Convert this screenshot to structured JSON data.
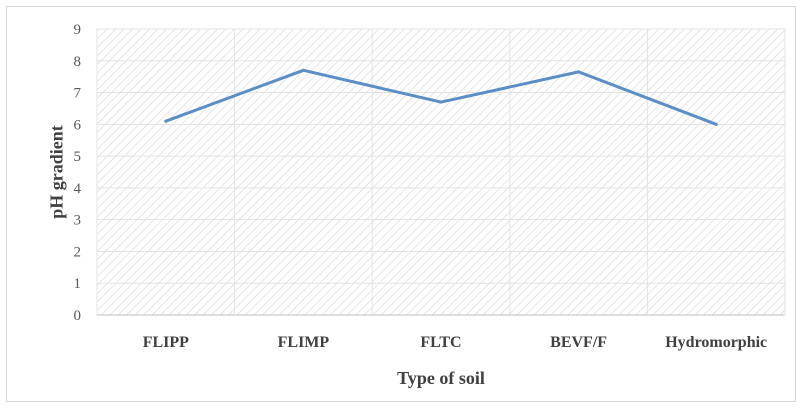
{
  "chart_data": {
    "type": "line",
    "xlabel": "Type of soil",
    "ylabel": "pH  gradient",
    "categories": [
      "FLIPP",
      "FLIMP",
      "FLTC",
      "BEVF/F",
      "Hydromorphic"
    ],
    "series": [
      {
        "values": [
          6.1,
          7.7,
          6.7,
          7.65,
          6.0
        ],
        "color": "#5b8ec7"
      }
    ],
    "ylim": [
      0,
      9
    ],
    "yticks": [
      "0",
      "1",
      "2",
      "3",
      "4",
      "5",
      "6",
      "7",
      "8",
      "9"
    ],
    "grid": true,
    "plot_background": "hatched",
    "legend": "none"
  }
}
